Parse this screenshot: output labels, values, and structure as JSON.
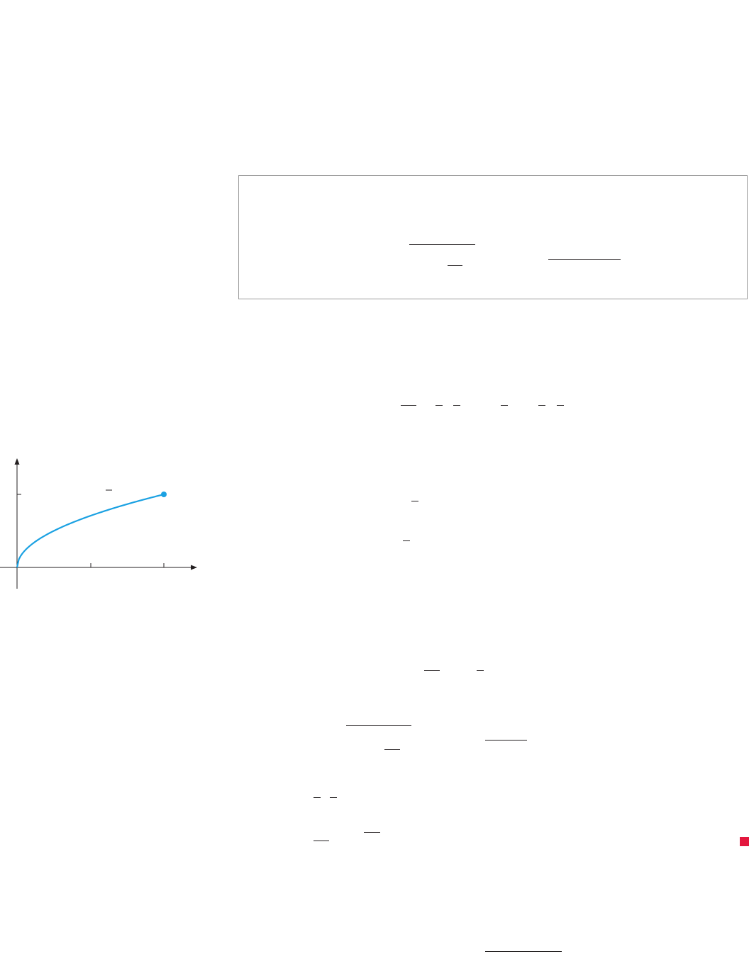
{
  "colors": {
    "curve": "#1ba1e2",
    "end_marker": "#e3173e",
    "ink": "#231f20",
    "box_border": "#9a9a9a"
  },
  "figure": {
    "type": "curve-plot",
    "curve_shape": "square root"
  }
}
